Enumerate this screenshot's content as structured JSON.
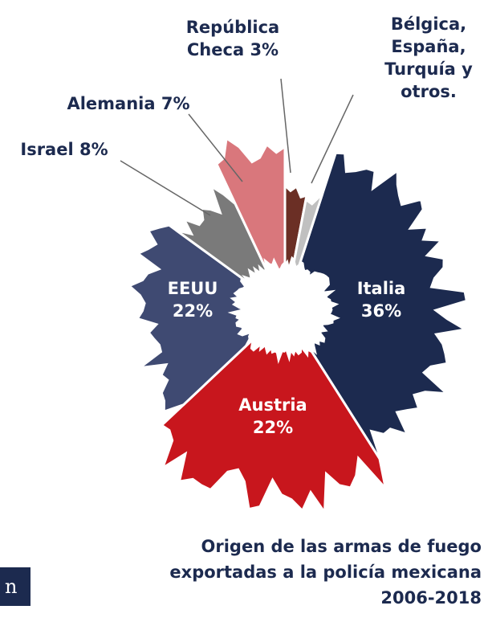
{
  "chart_data": {
    "type": "pie",
    "title": "Origen de las armas de fuego exportadas a la policía mexicana 2006-2018",
    "categories": [
      "Italia",
      "Austria",
      "EEUU",
      "Israel",
      "Alemania",
      "República Checa",
      "Bélgica, España, Turquía y otros."
    ],
    "values": [
      36,
      22,
      22,
      8,
      7,
      3,
      2
    ],
    "value_labels": [
      "36%",
      "22%",
      "22%",
      "8%",
      "7%",
      "3%",
      null
    ],
    "colors": [
      "#1c2a4f",
      "#c8161d",
      "#3f4a72",
      "#7a7a7a",
      "#d9777c",
      "#6b2f25",
      "#c0c0c0"
    ]
  },
  "side_fragment": "n"
}
